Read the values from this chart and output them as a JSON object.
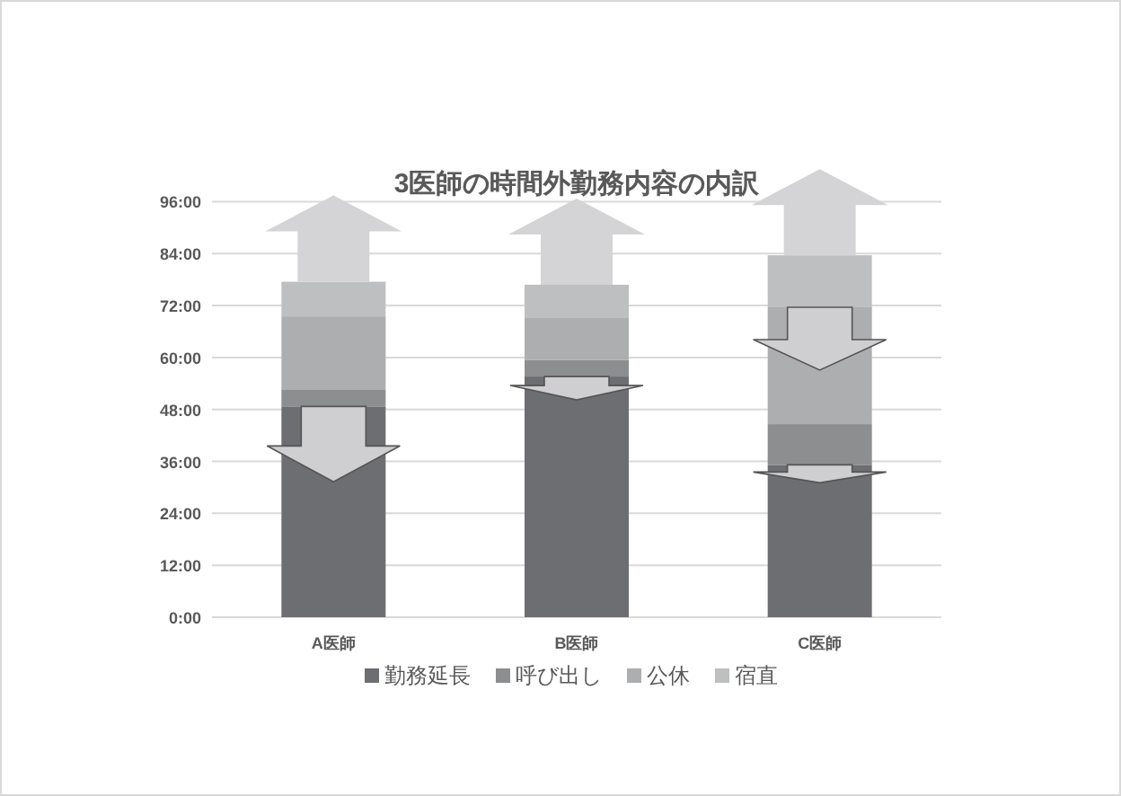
{
  "chart_data": {
    "type": "bar",
    "title": "3医師の時間外勤務内容の内訳",
    "stacked": true,
    "categories": [
      "A医師",
      "B医師",
      "C医師"
    ],
    "series": [
      {
        "name": "勤務延長",
        "color": "#6d6e71",
        "values": [
          48.7,
          55.6,
          35.2
        ]
      },
      {
        "name": "呼び出し",
        "color": "#8d8e90",
        "values": [
          3.8,
          3.8,
          9.4
        ]
      },
      {
        "name": "公休",
        "color": "#adaeb0",
        "values": [
          17.0,
          9.7,
          27.0
        ]
      },
      {
        "name": "宿直",
        "color": "#bebfc1",
        "values": [
          8.0,
          7.7,
          12.0
        ]
      }
    ],
    "ylim": [
      0,
      96
    ],
    "yticks": [
      {
        "value": 0,
        "label": "0:00"
      },
      {
        "value": 12,
        "label": "12:00"
      },
      {
        "value": 24,
        "label": "24:00"
      },
      {
        "value": 36,
        "label": "36:00"
      },
      {
        "value": 48,
        "label": "48:00"
      },
      {
        "value": 60,
        "label": "60:00"
      },
      {
        "value": 72,
        "label": "72:00"
      },
      {
        "value": 84,
        "label": "84:00"
      },
      {
        "value": 96,
        "label": "96:00"
      }
    ],
    "grid": "y",
    "legend": "bottom"
  }
}
